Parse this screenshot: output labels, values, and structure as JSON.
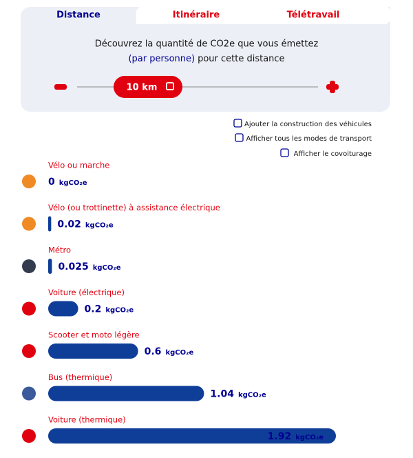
{
  "tabs": [
    "Distance",
    "Itinéraire",
    "Télétravail"
  ],
  "panel": {
    "line1": "Découvrez la quantité de CO2e que vous émettez",
    "line2_highlight": "(par personne)",
    "line2_rest": "pour cette distance",
    "distance": "10 km"
  },
  "options": [
    "Ajouter la construction des véhicules",
    "Afficher tous les modes de transport",
    "Afficher le covoiturage"
  ],
  "chart_data": {
    "type": "bar",
    "orientation": "horizontal",
    "categories": [
      "Vélo ou marche",
      "Vélo (ou trottinette) à assistance électrique",
      "Métro",
      "Voiture (électrique)",
      "Scooter et moto légère",
      "Bus (thermique)",
      "Voiture (thermique)"
    ],
    "values": [
      0,
      0.02,
      0.025,
      0.2,
      0.6,
      1.04,
      1.92
    ],
    "unit": "kgCO₂e",
    "color": "#0f3e99"
  }
}
